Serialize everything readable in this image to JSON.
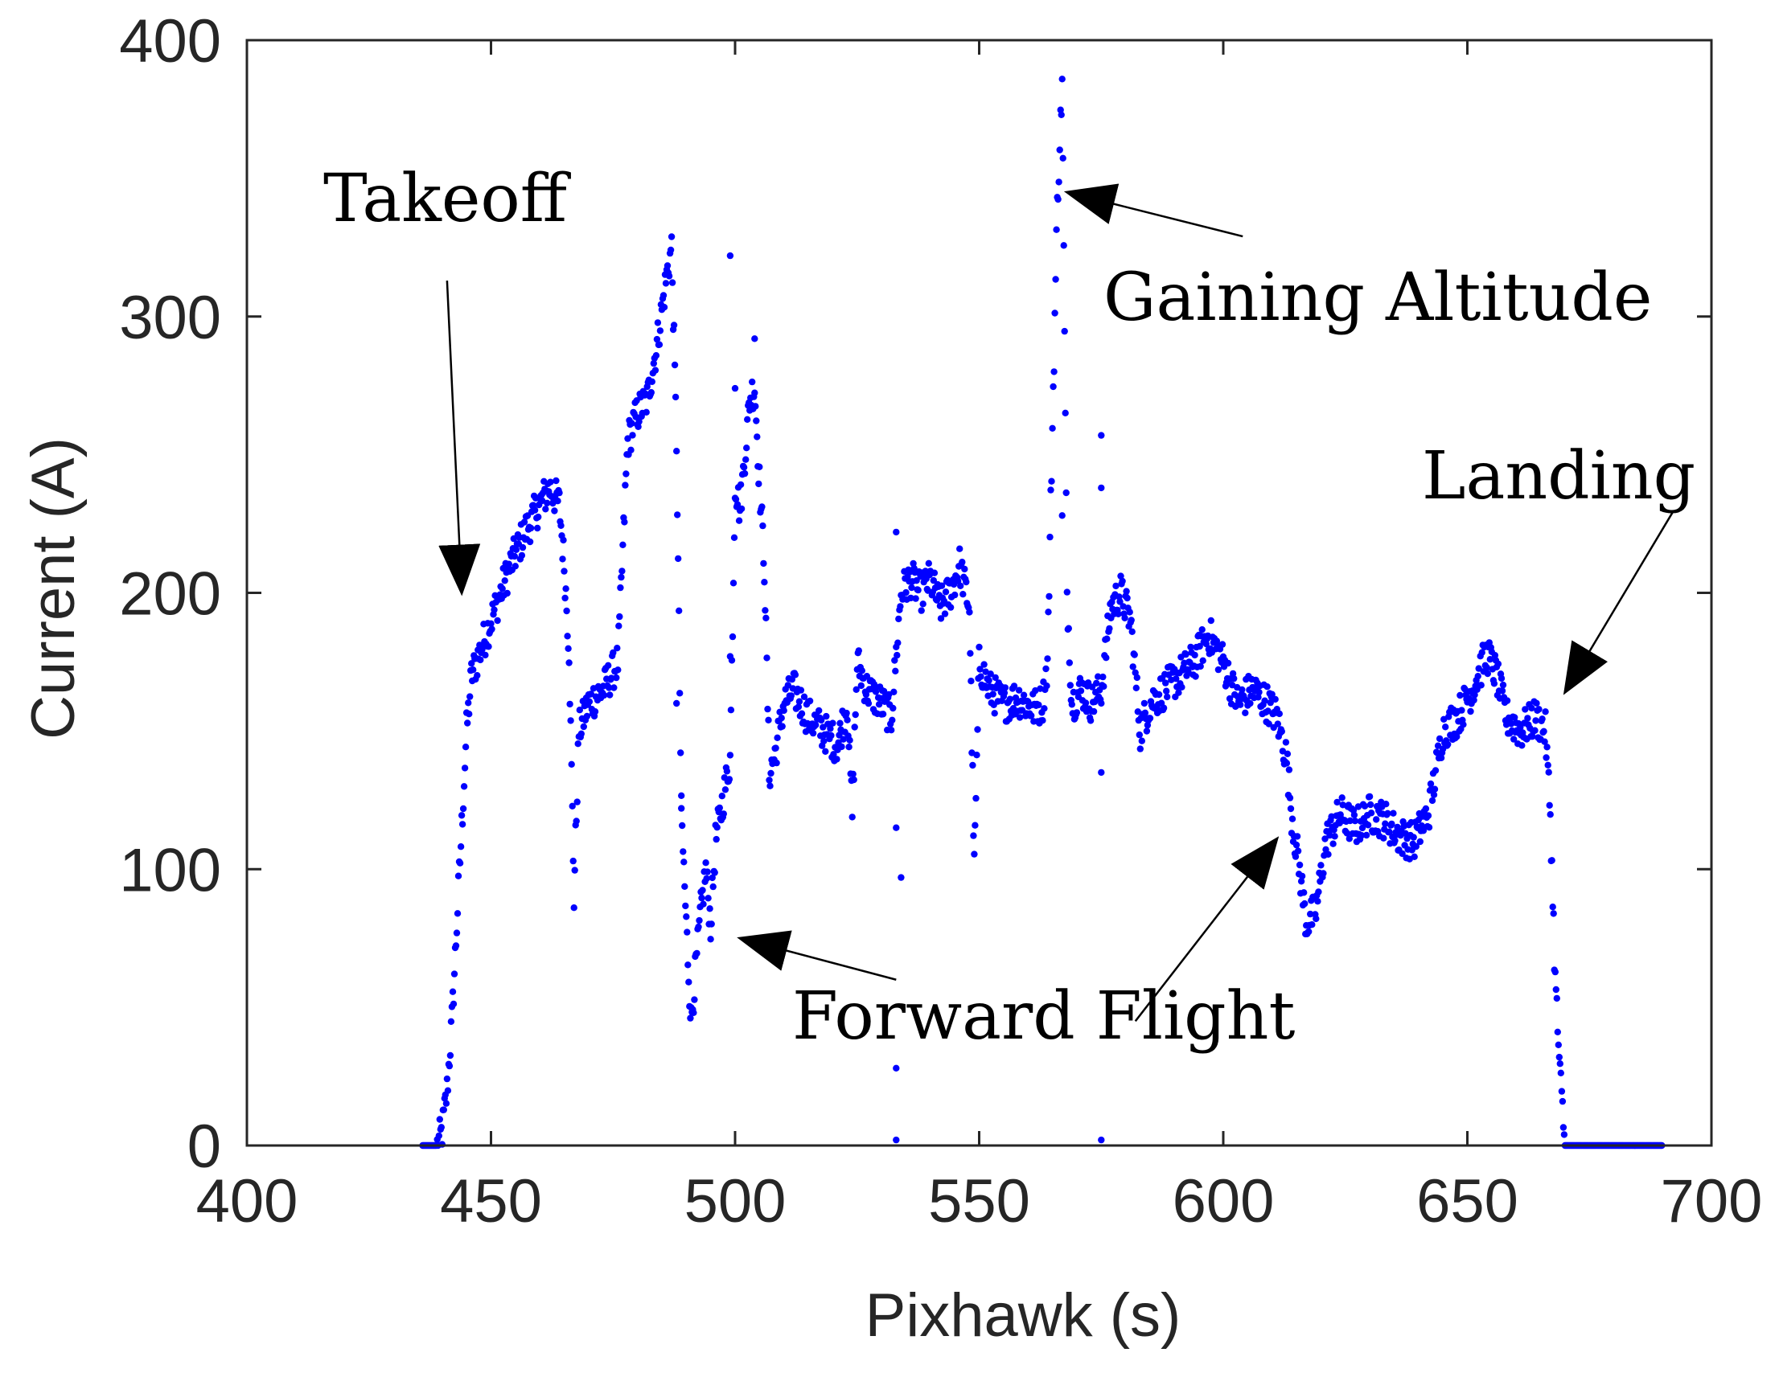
{
  "chart_data": {
    "type": "scatter",
    "title": "",
    "xlabel": "Pixhawk (s)",
    "ylabel": "Current (A)",
    "xlim": [
      400,
      700
    ],
    "ylim": [
      0,
      400
    ],
    "xticks": [
      400,
      450,
      500,
      550,
      600,
      650,
      700
    ],
    "yticks": [
      0,
      100,
      200,
      300,
      400
    ],
    "grid": false,
    "marker_color": "#0000ff",
    "series": [
      {
        "name": "Current",
        "anchors": [
          [
            436,
            0
          ],
          [
            439,
            0
          ],
          [
            440,
            5
          ],
          [
            441,
            20
          ],
          [
            442,
            45
          ],
          [
            443,
            80
          ],
          [
            444,
            115
          ],
          [
            445,
            150
          ],
          [
            446,
            170
          ],
          [
            448,
            180
          ],
          [
            451,
            195
          ],
          [
            454,
            210
          ],
          [
            457,
            222
          ],
          [
            460,
            232
          ],
          [
            462,
            238
          ],
          [
            464,
            232
          ],
          [
            465,
            210
          ],
          [
            466,
            180
          ],
          [
            467,
            90
          ],
          [
            468,
            150
          ],
          [
            470,
            160
          ],
          [
            473,
            165
          ],
          [
            476,
            175
          ],
          [
            478,
            255
          ],
          [
            480,
            265
          ],
          [
            482,
            270
          ],
          [
            484,
            290
          ],
          [
            486,
            315
          ],
          [
            487,
            325
          ],
          [
            488,
            255
          ],
          [
            489,
            120
          ],
          [
            490,
            80
          ],
          [
            491,
            45
          ],
          [
            492,
            65
          ],
          [
            493,
            85
          ],
          [
            494,
            100
          ],
          [
            495,
            80
          ],
          [
            496,
            110
          ],
          [
            497,
            120
          ],
          [
            499,
            140
          ],
          [
            500,
            240
          ],
          [
            501,
            230
          ],
          [
            502,
            250
          ],
          [
            503,
            270
          ],
          [
            504,
            275
          ],
          [
            505,
            240
          ],
          [
            506,
            210
          ],
          [
            507,
            135
          ],
          [
            508,
            140
          ],
          [
            510,
            160
          ],
          [
            512,
            165
          ],
          [
            515,
            155
          ],
          [
            518,
            150
          ],
          [
            521,
            145
          ],
          [
            523,
            160
          ],
          [
            524,
            120
          ],
          [
            525,
            175
          ],
          [
            527,
            165
          ],
          [
            530,
            160
          ],
          [
            532,
            155
          ],
          [
            534,
            200
          ],
          [
            536,
            205
          ],
          [
            538,
            200
          ],
          [
            540,
            205
          ],
          [
            542,
            195
          ],
          [
            544,
            200
          ],
          [
            546,
            210
          ],
          [
            548,
            195
          ],
          [
            549,
            100
          ],
          [
            550,
            175
          ],
          [
            552,
            165
          ],
          [
            555,
            160
          ],
          [
            558,
            162
          ],
          [
            561,
            158
          ],
          [
            563,
            160
          ],
          [
            564,
            175
          ],
          [
            565,
            260
          ],
          [
            566,
            340
          ],
          [
            567,
            385
          ],
          [
            568,
            200
          ],
          [
            569,
            160
          ],
          [
            571,
            165
          ],
          [
            573,
            160
          ],
          [
            575,
            165
          ],
          [
            577,
            195
          ],
          [
            579,
            200
          ],
          [
            581,
            190
          ],
          [
            583,
            150
          ],
          [
            585,
            160
          ],
          [
            588,
            165
          ],
          [
            591,
            170
          ],
          [
            594,
            175
          ],
          [
            597,
            185
          ],
          [
            600,
            175
          ],
          [
            603,
            160
          ],
          [
            606,
            165
          ],
          [
            609,
            160
          ],
          [
            611,
            155
          ],
          [
            613,
            140
          ],
          [
            614,
            120
          ],
          [
            616,
            95
          ],
          [
            617,
            80
          ],
          [
            619,
            85
          ],
          [
            621,
            110
          ],
          [
            624,
            120
          ],
          [
            627,
            115
          ],
          [
            630,
            120
          ],
          [
            633,
            118
          ],
          [
            636,
            112
          ],
          [
            639,
            110
          ],
          [
            642,
            120
          ],
          [
            645,
            150
          ],
          [
            648,
            155
          ],
          [
            651,
            165
          ],
          [
            654,
            178
          ],
          [
            656,
            170
          ],
          [
            658,
            155
          ],
          [
            661,
            150
          ],
          [
            664,
            155
          ],
          [
            666,
            150
          ],
          [
            667,
            120
          ],
          [
            668,
            60
          ],
          [
            669,
            25
          ],
          [
            670,
            0
          ],
          [
            690,
            0
          ]
        ],
        "outliers": [
          [
            488,
            160
          ],
          [
            499,
            322
          ],
          [
            499,
            177
          ],
          [
            533,
            222
          ],
          [
            533,
            115
          ],
          [
            533,
            28
          ],
          [
            533,
            2
          ],
          [
            575,
            257
          ],
          [
            575,
            238
          ],
          [
            575,
            135
          ],
          [
            575,
            2
          ],
          [
            567,
            228
          ],
          [
            534,
            97
          ],
          [
            489,
            122
          ],
          [
            500,
            274
          ],
          [
            504,
            292
          ]
        ]
      }
    ],
    "annotations": [
      {
        "text": "Takeoff",
        "arrow_from": [
          441,
          313
        ],
        "arrow_to": [
          444,
          200
        ]
      },
      {
        "text": "Gaining Altitude",
        "arrow_from": [
          604,
          329
        ],
        "arrow_to": [
          568,
          345
        ]
      },
      {
        "text": "Landing",
        "arrow_from": [
          692,
          229
        ],
        "arrow_to": [
          670,
          164
        ]
      },
      {
        "text": "Forward Flight",
        "arrow_from": [
          533,
          60
        ],
        "arrow_to": [
          501,
          75
        ]
      },
      {
        "text": "Forward Flight",
        "arrow_from": [
          582,
          45
        ],
        "arrow_to": [
          611,
          111
        ]
      }
    ],
    "annotation_labels": {
      "takeoff": "Takeoff",
      "gaining_altitude": "Gaining Altitude",
      "landing": "Landing",
      "forward_flight": "Forward Flight"
    }
  }
}
